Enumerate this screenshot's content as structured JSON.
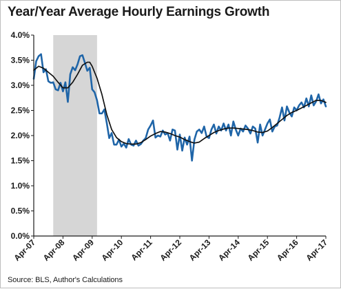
{
  "chart_data": {
    "type": "line",
    "title": "Year/Year Average Hourly Earnings Growth",
    "source": "Source: BLS, Author's Calculations",
    "xlabel": "",
    "ylabel": "",
    "ylim": [
      0.0,
      4.0
    ],
    "y_ticks": [
      0.0,
      0.5,
      1.0,
      1.5,
      2.0,
      2.5,
      3.0,
      3.5,
      4.0
    ],
    "y_tick_labels": [
      "0.0%",
      "0.5%",
      "1.0%",
      "1.5%",
      "2.0%",
      "2.5%",
      "3.0%",
      "3.5%",
      "4.0%"
    ],
    "x_range": [
      "2007-04",
      "2017-04"
    ],
    "x_ticks": [
      "2007-04",
      "2008-04",
      "2009-04",
      "2010-04",
      "2011-04",
      "2012-04",
      "2013-04",
      "2014-04",
      "2015-04",
      "2016-04",
      "2017-04"
    ],
    "x_tick_labels": [
      "Apr-07",
      "Apr-08",
      "Apr-09",
      "Apr-10",
      "Apr-11",
      "Apr-12",
      "Apr-13",
      "Apr-14",
      "Apr-15",
      "Apr-16",
      "Apr-17"
    ],
    "grid": false,
    "legend": "none",
    "recession_shading": {
      "start": "2007-12",
      "end": "2009-06",
      "color": "#d6d6d6"
    },
    "series": [
      {
        "color": "#1f65a8",
        "points": [
          [
            "2007-04",
            3.13
          ],
          [
            "2007-05",
            3.48
          ],
          [
            "2007-06",
            3.58
          ],
          [
            "2007-07",
            3.62
          ],
          [
            "2007-08",
            3.26
          ],
          [
            "2007-09",
            3.32
          ],
          [
            "2007-10",
            3.08
          ],
          [
            "2007-11",
            3.05
          ],
          [
            "2007-12",
            3.06
          ],
          [
            "2008-01",
            2.92
          ],
          [
            "2008-02",
            2.9
          ],
          [
            "2008-03",
            3.05
          ],
          [
            "2008-04",
            2.88
          ],
          [
            "2008-05",
            3.06
          ],
          [
            "2008-06",
            2.67
          ],
          [
            "2008-07",
            3.22
          ],
          [
            "2008-08",
            3.36
          ],
          [
            "2008-09",
            3.3
          ],
          [
            "2008-10",
            3.42
          ],
          [
            "2008-11",
            3.58
          ],
          [
            "2008-12",
            3.6
          ],
          [
            "2009-01",
            3.45
          ],
          [
            "2009-02",
            3.29
          ],
          [
            "2009-03",
            3.35
          ],
          [
            "2009-04",
            2.92
          ],
          [
            "2009-05",
            2.86
          ],
          [
            "2009-06",
            2.7
          ],
          [
            "2009-07",
            2.44
          ],
          [
            "2009-08",
            2.44
          ],
          [
            "2009-09",
            2.52
          ],
          [
            "2009-10",
            2.25
          ],
          [
            "2009-11",
            1.95
          ],
          [
            "2009-12",
            2.05
          ],
          [
            "2010-01",
            1.82
          ],
          [
            "2010-02",
            1.82
          ],
          [
            "2010-03",
            1.92
          ],
          [
            "2010-04",
            1.78
          ],
          [
            "2010-05",
            1.84
          ],
          [
            "2010-06",
            1.76
          ],
          [
            "2010-07",
            1.93
          ],
          [
            "2010-08",
            1.82
          ],
          [
            "2010-09",
            1.8
          ],
          [
            "2010-10",
            1.9
          ],
          [
            "2010-11",
            1.8
          ],
          [
            "2010-12",
            1.83
          ],
          [
            "2011-01",
            1.9
          ],
          [
            "2011-02",
            1.95
          ],
          [
            "2011-03",
            2.12
          ],
          [
            "2011-04",
            2.2
          ],
          [
            "2011-05",
            2.3
          ],
          [
            "2011-06",
            1.96
          ],
          [
            "2011-07",
            2.0
          ],
          [
            "2011-08",
            1.98
          ],
          [
            "2011-09",
            2.1
          ],
          [
            "2011-10",
            2.02
          ],
          [
            "2011-11",
            2.05
          ],
          [
            "2011-12",
            1.9
          ],
          [
            "2012-01",
            2.12
          ],
          [
            "2012-02",
            2.1
          ],
          [
            "2012-03",
            1.72
          ],
          [
            "2012-04",
            2.02
          ],
          [
            "2012-05",
            1.7
          ],
          [
            "2012-06",
            1.96
          ],
          [
            "2012-07",
            1.82
          ],
          [
            "2012-08",
            1.98
          ],
          [
            "2012-09",
            1.5
          ],
          [
            "2012-10",
            1.92
          ],
          [
            "2012-11",
            2.08
          ],
          [
            "2012-12",
            2.12
          ],
          [
            "2013-01",
            2.05
          ],
          [
            "2013-02",
            2.18
          ],
          [
            "2013-03",
            1.98
          ],
          [
            "2013-04",
            1.95
          ],
          [
            "2013-05",
            2.12
          ],
          [
            "2013-06",
            2.22
          ],
          [
            "2013-07",
            2.04
          ],
          [
            "2013-08",
            2.18
          ],
          [
            "2013-09",
            2.1
          ],
          [
            "2013-10",
            2.24
          ],
          [
            "2013-11",
            2.1
          ],
          [
            "2013-12",
            2.22
          ],
          [
            "2014-01",
            2.0
          ],
          [
            "2014-02",
            2.28
          ],
          [
            "2014-03",
            2.12
          ],
          [
            "2014-04",
            2.0
          ],
          [
            "2014-05",
            2.14
          ],
          [
            "2014-06",
            2.08
          ],
          [
            "2014-07",
            2.2
          ],
          [
            "2014-08",
            2.14
          ],
          [
            "2014-09",
            2.04
          ],
          [
            "2014-10",
            2.18
          ],
          [
            "2014-11",
            2.14
          ],
          [
            "2014-12",
            1.86
          ],
          [
            "2015-01",
            2.22
          ],
          [
            "2015-02",
            2.0
          ],
          [
            "2015-03",
            2.12
          ],
          [
            "2015-04",
            2.24
          ],
          [
            "2015-05",
            2.32
          ],
          [
            "2015-06",
            2.08
          ],
          [
            "2015-07",
            2.18
          ],
          [
            "2015-08",
            2.2
          ],
          [
            "2015-09",
            2.36
          ],
          [
            "2015-10",
            2.56
          ],
          [
            "2015-11",
            2.3
          ],
          [
            "2015-12",
            2.58
          ],
          [
            "2016-01",
            2.46
          ],
          [
            "2016-02",
            2.38
          ],
          [
            "2016-03",
            2.56
          ],
          [
            "2016-04",
            2.5
          ],
          [
            "2016-05",
            2.6
          ],
          [
            "2016-06",
            2.66
          ],
          [
            "2016-07",
            2.56
          ],
          [
            "2016-08",
            2.74
          ],
          [
            "2016-09",
            2.58
          ],
          [
            "2016-10",
            2.8
          ],
          [
            "2016-11",
            2.6
          ],
          [
            "2016-12",
            2.68
          ],
          [
            "2017-01",
            2.82
          ],
          [
            "2017-02",
            2.64
          ],
          [
            "2017-03",
            2.72
          ],
          [
            "2017-04",
            2.58
          ]
        ]
      },
      {
        "color": "#111111",
        "points": [
          [
            "2007-04",
            3.3
          ],
          [
            "2007-06",
            3.38
          ],
          [
            "2007-08",
            3.34
          ],
          [
            "2007-10",
            3.26
          ],
          [
            "2007-12",
            3.18
          ],
          [
            "2008-02",
            3.06
          ],
          [
            "2008-04",
            2.95
          ],
          [
            "2008-06",
            2.95
          ],
          [
            "2008-08",
            3.06
          ],
          [
            "2008-10",
            3.22
          ],
          [
            "2008-12",
            3.4
          ],
          [
            "2009-02",
            3.46
          ],
          [
            "2009-03",
            3.46
          ],
          [
            "2009-04",
            3.38
          ],
          [
            "2009-06",
            3.14
          ],
          [
            "2009-08",
            2.82
          ],
          [
            "2009-10",
            2.42
          ],
          [
            "2009-12",
            2.12
          ],
          [
            "2010-02",
            1.96
          ],
          [
            "2010-04",
            1.88
          ],
          [
            "2010-06",
            1.84
          ],
          [
            "2010-08",
            1.83
          ],
          [
            "2010-10",
            1.83
          ],
          [
            "2010-12",
            1.86
          ],
          [
            "2011-02",
            1.92
          ],
          [
            "2011-04",
            1.99
          ],
          [
            "2011-06",
            2.04
          ],
          [
            "2011-08",
            2.08
          ],
          [
            "2011-10",
            2.07
          ],
          [
            "2011-12",
            2.04
          ],
          [
            "2012-02",
            2.0
          ],
          [
            "2012-04",
            1.97
          ],
          [
            "2012-06",
            1.92
          ],
          [
            "2012-08",
            1.88
          ],
          [
            "2012-10",
            1.85
          ],
          [
            "2012-12",
            1.87
          ],
          [
            "2013-02",
            1.94
          ],
          [
            "2013-04",
            2.0
          ],
          [
            "2013-06",
            2.06
          ],
          [
            "2013-08",
            2.1
          ],
          [
            "2013-10",
            2.13
          ],
          [
            "2013-12",
            2.15
          ],
          [
            "2014-02",
            2.15
          ],
          [
            "2014-04",
            2.14
          ],
          [
            "2014-06",
            2.13
          ],
          [
            "2014-08",
            2.12
          ],
          [
            "2014-10",
            2.1
          ],
          [
            "2014-12",
            2.07
          ],
          [
            "2015-02",
            2.06
          ],
          [
            "2015-04",
            2.09
          ],
          [
            "2015-06",
            2.16
          ],
          [
            "2015-08",
            2.24
          ],
          [
            "2015-10",
            2.32
          ],
          [
            "2015-12",
            2.4
          ],
          [
            "2016-02",
            2.46
          ],
          [
            "2016-04",
            2.5
          ],
          [
            "2016-06",
            2.55
          ],
          [
            "2016-08",
            2.6
          ],
          [
            "2016-10",
            2.65
          ],
          [
            "2016-12",
            2.7
          ],
          [
            "2017-02",
            2.7
          ],
          [
            "2017-04",
            2.66
          ]
        ]
      }
    ]
  }
}
